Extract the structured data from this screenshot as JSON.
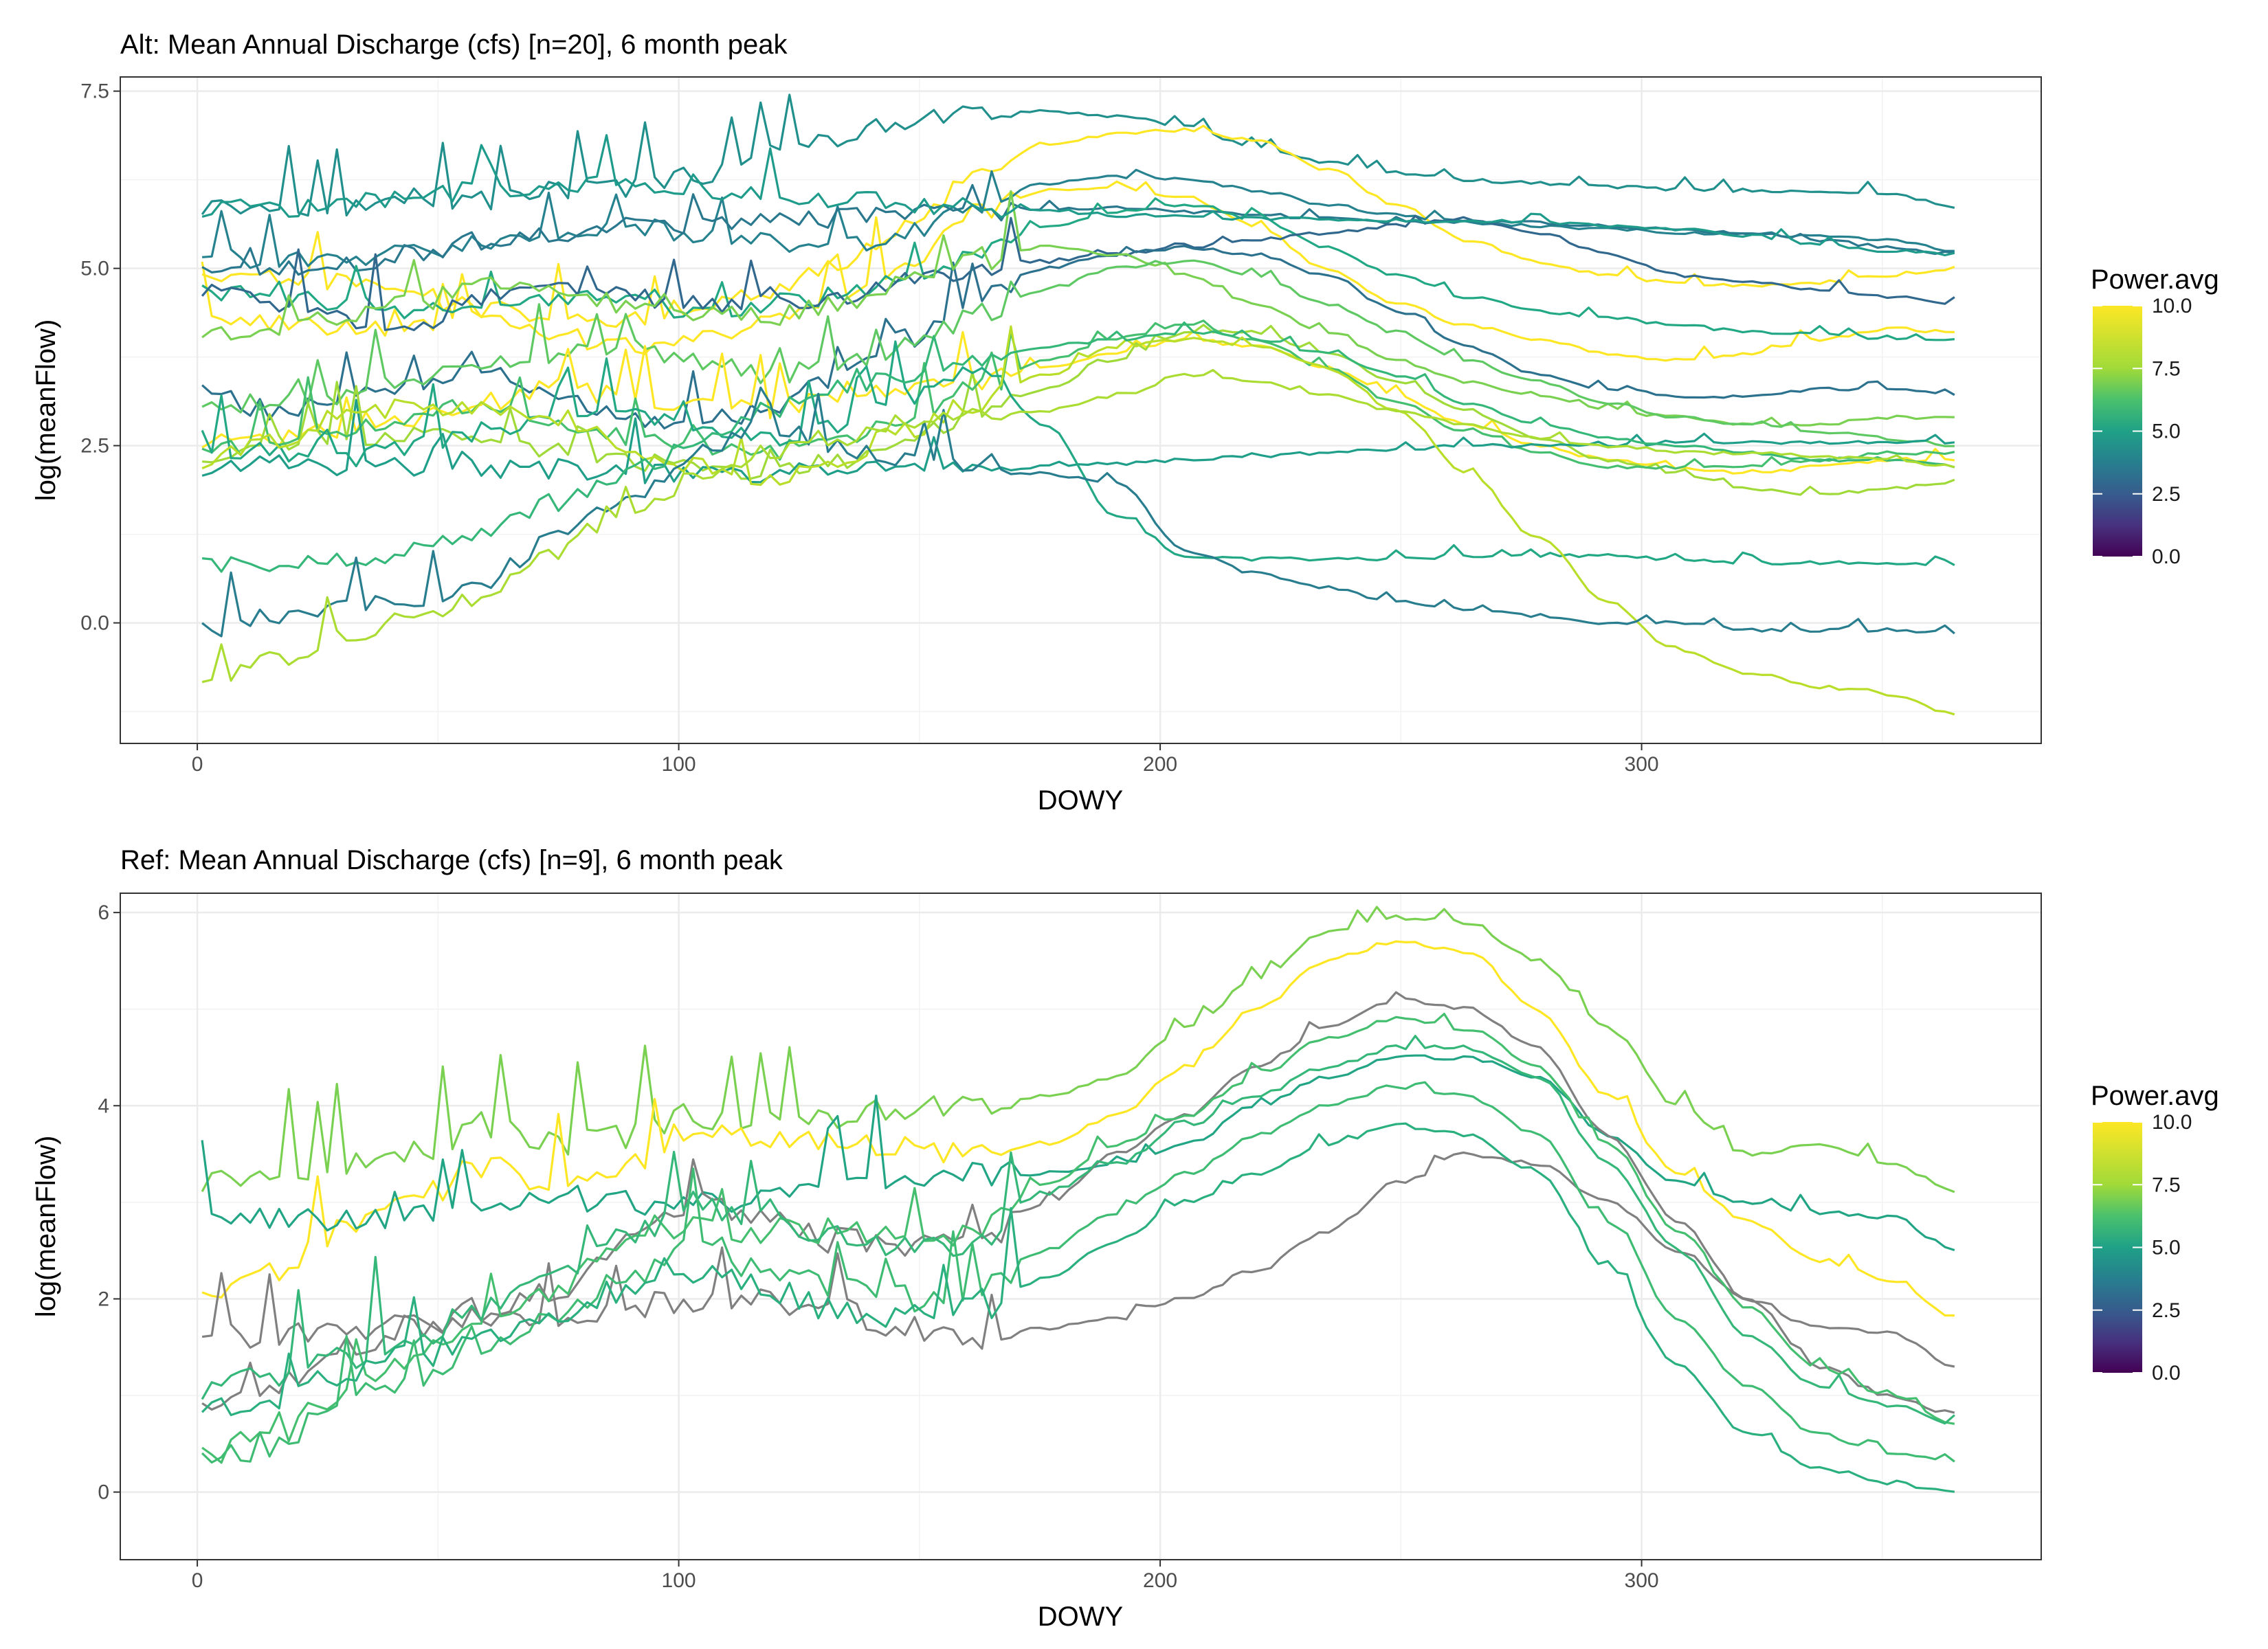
{
  "chart_data": [
    {
      "type": "line",
      "title": "Alt: Mean Annual Discharge (cfs) [n=20], 6 month peak",
      "xlabel": "DOWY",
      "ylabel": "log(meanFlow)",
      "xlim": [
        -16,
        383
      ],
      "ylim": [
        -1.7,
        7.7
      ],
      "xticks": [
        0,
        100,
        200,
        300
      ],
      "xtick_labels": [
        "0",
        "100",
        "200",
        "300"
      ],
      "yticks": [
        0,
        2.5,
        5,
        7.5
      ],
      "ytick_labels": [
        "0.0",
        "2.5",
        "5.0",
        "7.5"
      ],
      "grid": true,
      "legend": {
        "title": "Power.avg",
        "placement": "right",
        "type": "colorbar",
        "ticks": [
          "0.0",
          "2.5",
          "5.0",
          "7.5",
          "10.0"
        ],
        "range": [
          0,
          10
        ]
      },
      "series": [
        {
          "color": "#21908d",
          "power": 5.0,
          "y": [
            5.85,
            5.82,
            5.85,
            6.0,
            5.95,
            6.1,
            6.15,
            6.3,
            6.6,
            6.85,
            7.1,
            7.2,
            7.22,
            7.15,
            7.0,
            6.7,
            6.5,
            6.35,
            6.25,
            6.2,
            6.15,
            6.12,
            6.1,
            6.08,
            6.05,
            5.85
          ]
        },
        {
          "color": "#fde725",
          "power": 10.0,
          "y": [
            4.95,
            4.9,
            4.8,
            4.6,
            4.45,
            4.35,
            4.3,
            4.5,
            4.7,
            5.0,
            5.6,
            6.3,
            6.75,
            6.9,
            6.95,
            6.8,
            6.4,
            5.9,
            5.4,
            5.1,
            4.9,
            4.8,
            4.75,
            4.8,
            4.9,
            5.0
          ]
        },
        {
          "color": "#fde725",
          "power": 9.8,
          "y": [
            4.25,
            4.2,
            4.15,
            4.2,
            4.3,
            4.0,
            3.9,
            4.0,
            4.2,
            4.5,
            5.1,
            5.8,
            6.1,
            6.15,
            6.0,
            5.6,
            5.0,
            4.5,
            4.2,
            4.0,
            3.8,
            3.7,
            3.8,
            4.0,
            4.15,
            4.1
          ]
        },
        {
          "color": "#26828e",
          "power": 4.6,
          "y": [
            5.15,
            5.1,
            5.15,
            5.2,
            5.3,
            5.5,
            5.6,
            5.5,
            5.4,
            5.3,
            5.5,
            5.9,
            6.2,
            6.3,
            6.25,
            6.1,
            5.9,
            5.75,
            5.65,
            5.6,
            5.55,
            5.5,
            5.5,
            5.45,
            5.4,
            5.25
          ]
        },
        {
          "color": "#2a788e",
          "power": 4.2,
          "y": [
            5.05,
            5.0,
            5.05,
            5.2,
            5.4,
            5.5,
            5.55,
            5.6,
            5.65,
            5.7,
            5.75,
            5.8,
            5.85,
            5.85,
            5.8,
            5.75,
            5.7,
            5.65,
            5.65,
            5.65,
            5.6,
            5.55,
            5.5,
            5.4,
            5.3,
            5.2
          ]
        },
        {
          "color": "#22a884",
          "power": 6.3,
          "y": [
            4.7,
            4.6,
            4.5,
            4.4,
            4.5,
            4.6,
            4.5,
            4.4,
            4.5,
            4.6,
            4.8,
            5.2,
            5.6,
            5.8,
            5.9,
            5.7,
            5.3,
            4.9,
            4.6,
            4.4,
            4.3,
            4.2,
            4.1,
            4.1,
            4.0,
            4.0
          ]
        },
        {
          "color": "#31688e",
          "power": 3.6,
          "y": [
            4.65,
            4.5,
            4.3,
            4.2,
            4.6,
            4.7,
            4.6,
            4.5,
            4.5,
            4.6,
            4.8,
            5.0,
            5.1,
            5.2,
            5.3,
            5.4,
            5.5,
            5.6,
            5.7,
            5.5,
            5.2,
            4.9,
            4.8,
            4.7,
            4.6,
            4.5
          ]
        },
        {
          "color": "#2c728e",
          "power": 4.0,
          "y": [
            3.25,
            3.0,
            3.1,
            3.4,
            3.6,
            3.2,
            2.9,
            2.8,
            3.0,
            3.4,
            4.0,
            4.6,
            5.0,
            5.2,
            5.3,
            5.2,
            4.9,
            4.4,
            3.9,
            3.5,
            3.3,
            3.2,
            3.2,
            3.3,
            3.3,
            3.2
          ]
        },
        {
          "color": "#7ad151",
          "power": 8.6,
          "y": [
            4.1,
            4.2,
            4.3,
            4.5,
            4.8,
            4.7,
            4.5,
            4.4,
            4.3,
            4.5,
            4.8,
            5.1,
            5.3,
            5.2,
            4.9,
            4.5,
            4.1,
            3.7,
            3.4,
            3.2,
            3.0,
            2.9,
            2.8,
            2.8,
            2.9,
            2.9
          ]
        },
        {
          "color": "#5ec962",
          "power": 8.1,
          "y": [
            3.0,
            3.1,
            3.2,
            3.4,
            3.6,
            3.8,
            3.9,
            3.7,
            3.5,
            3.6,
            3.9,
            4.3,
            4.7,
            5.0,
            5.1,
            4.9,
            4.5,
            4.1,
            3.7,
            3.4,
            3.1,
            2.9,
            2.8,
            2.7,
            2.6,
            2.5
          ]
        },
        {
          "color": "#fde725",
          "power": 9.9,
          "y": [
            2.5,
            2.6,
            2.7,
            2.9,
            3.1,
            3.3,
            3.2,
            3.1,
            3.0,
            3.2,
            3.3,
            3.4,
            3.6,
            3.8,
            4.0,
            3.9,
            3.6,
            3.2,
            2.8,
            2.5,
            2.3,
            2.2,
            2.1,
            2.2,
            2.3,
            2.3
          ]
        },
        {
          "color": "#a0da39",
          "power": 9.0,
          "y": [
            2.3,
            2.5,
            2.6,
            2.7,
            2.5,
            2.4,
            2.3,
            2.2,
            2.1,
            2.3,
            2.6,
            2.9,
            3.3,
            3.7,
            4.1,
            4.1,
            3.8,
            3.4,
            3.0,
            2.6,
            2.3,
            2.1,
            1.9,
            1.8,
            1.9,
            2.0
          ]
        },
        {
          "color": "#44bf70",
          "power": 7.5,
          "y": [
            2.4,
            2.5,
            2.7,
            2.9,
            3.1,
            2.8,
            2.6,
            2.5,
            2.4,
            2.6,
            2.9,
            3.3,
            3.7,
            4.0,
            4.2,
            4.0,
            3.6,
            3.1,
            2.7,
            2.4,
            2.2,
            2.2,
            2.2,
            2.3,
            2.4,
            2.4
          ]
        },
        {
          "color": "#1f9e89",
          "power": 5.8,
          "y": [
            2.2,
            2.25,
            2.2,
            2.2,
            2.15,
            2.15,
            2.1,
            2.1,
            2.1,
            2.12,
            2.15,
            2.15,
            2.2,
            2.25,
            2.3,
            2.35,
            2.4,
            2.45,
            2.5,
            2.5,
            2.5,
            2.55,
            2.55,
            2.55,
            2.55,
            2.55
          ]
        },
        {
          "color": "#22a884",
          "power": 6.4,
          "y": [
            2.5,
            2.4,
            2.3,
            2.5,
            2.7,
            2.9,
            3.0,
            2.7,
            2.6,
            2.8,
            3.2,
            3.6,
            2.8,
            1.5,
            0.95,
            0.9,
            0.9,
            0.9,
            0.95,
            0.95,
            0.95,
            0.9,
            0.85,
            0.85,
            0.85,
            0.8
          ]
        },
        {
          "color": "#b8de29",
          "power": 9.4,
          "y": [
            2.3,
            2.6,
            2.9,
            3.1,
            3.0,
            2.9,
            2.5,
            2.2,
            2.0,
            2.3,
            2.7,
            3.1,
            3.5,
            3.9,
            4.0,
            3.9,
            3.6,
            3.0,
            2.1,
            1.2,
            0.3,
            -0.4,
            -0.7,
            -0.9,
            -1.0,
            -1.3
          ]
        },
        {
          "color": "#35b779",
          "power": 7.2,
          "y": [
            0.85,
            0.8,
            0.9,
            1.0,
            1.3,
            1.7,
            2.1,
            2.5,
            3.0,
            3.3,
            3.5,
            3.7,
            3.9,
            4.0,
            4.1,
            4.0,
            3.8,
            3.5,
            3.1,
            2.8,
            2.6,
            2.5,
            2.4,
            2.3,
            2.3,
            2.2
          ]
        },
        {
          "color": "#287d8e",
          "power": 4.4,
          "y": [
            -0.1,
            0.1,
            0.2,
            0.3,
            0.6,
            1.2,
            1.7,
            2.4,
            2.8,
            2.5,
            2.3,
            2.2,
            2.1,
            2.0,
            1.0,
            0.7,
            0.5,
            0.3,
            0.2,
            0.1,
            0.0,
            0.0,
            -0.1,
            -0.1,
            -0.1,
            -0.15
          ]
        },
        {
          "color": "#aadc32",
          "power": 9.2,
          "y": [
            -0.95,
            -0.5,
            -0.2,
            0.1,
            0.4,
            1.0,
            1.6,
            2.0,
            2.4,
            2.6,
            2.8,
            2.9,
            3.0,
            3.2,
            3.5,
            3.4,
            3.2,
            3.0,
            2.8,
            2.6,
            2.5,
            2.4,
            2.4,
            2.35,
            2.3,
            2.2
          ]
        },
        {
          "color": "#1e9b8a",
          "power": 5.7,
          "y": [
            5.85,
            5.85,
            5.9,
            6.0,
            6.1,
            6.2,
            6.15,
            6.1,
            6.05,
            6.0,
            5.9,
            5.85,
            5.8,
            5.75,
            5.75,
            5.7,
            5.7,
            5.68,
            5.65,
            5.65,
            5.6,
            5.55,
            5.45,
            5.35,
            5.25,
            5.2
          ]
        }
      ]
    },
    {
      "type": "line",
      "title": "Ref: Mean Annual Discharge (cfs) [n=9], 6 month peak",
      "xlabel": "DOWY",
      "ylabel": "log(meanFlow)",
      "xlim": [
        -16,
        383
      ],
      "ylim": [
        -0.7,
        6.2
      ],
      "xticks": [
        0,
        100,
        200,
        300
      ],
      "xtick_labels": [
        "0",
        "100",
        "200",
        "300"
      ],
      "yticks": [
        0,
        2,
        4,
        6
      ],
      "ytick_labels": [
        "0",
        "2",
        "4",
        "6"
      ],
      "grid": true,
      "legend": {
        "title": "Power.avg",
        "placement": "right",
        "type": "colorbar",
        "ticks": [
          "0.0",
          "2.5",
          "5.0",
          "7.5",
          "10.0"
        ],
        "range": [
          0,
          10
        ]
      },
      "series": [
        {
          "color": "#7ad151",
          "power": 8.6,
          "y": [
            3.2,
            3.25,
            3.4,
            3.5,
            3.8,
            3.6,
            3.7,
            3.9,
            3.8,
            3.9,
            4.0,
            4.0,
            4.1,
            4.3,
            4.8,
            5.3,
            5.8,
            5.95,
            5.9,
            5.5,
            4.8,
            4.0,
            3.5,
            3.6,
            3.4,
            3.1
          ]
        },
        {
          "color": "#fde725",
          "power": 10.0,
          "y": [
            2.1,
            2.3,
            2.7,
            3.0,
            3.4,
            3.2,
            3.4,
            3.8,
            3.7,
            3.6,
            3.6,
            3.5,
            3.6,
            3.9,
            4.4,
            5.0,
            5.5,
            5.7,
            5.6,
            5.0,
            4.1,
            3.3,
            2.8,
            2.4,
            2.2,
            1.8
          ]
        },
        {
          "color": "#21a585",
          "power": 6.2,
          "y": [
            2.8,
            2.8,
            2.8,
            2.9,
            2.9,
            3.0,
            3.0,
            3.0,
            3.0,
            3.2,
            3.3,
            3.3,
            3.3,
            3.4,
            3.6,
            4.0,
            4.3,
            4.5,
            4.5,
            4.3,
            3.7,
            3.2,
            3.0,
            2.9,
            2.85,
            2.5
          ]
        },
        {
          "color": "#808080",
          "power": null,
          "y": [
            1.6,
            1.6,
            1.7,
            1.7,
            1.75,
            1.8,
            1.9,
            2.0,
            2.0,
            1.9,
            1.7,
            1.6,
            1.7,
            1.8,
            2.0,
            2.3,
            2.7,
            3.2,
            3.5,
            3.4,
            3.0,
            2.5,
            2.0,
            1.7,
            1.65,
            1.3
          ]
        },
        {
          "color": "#808080",
          "power": null,
          "y": [
            0.95,
            1.1,
            1.5,
            1.7,
            1.9,
            2.1,
            2.5,
            3.0,
            2.8,
            2.6,
            2.5,
            2.6,
            3.0,
            3.5,
            3.9,
            4.4,
            4.8,
            5.1,
            5.0,
            4.6,
            3.7,
            2.8,
            2.0,
            1.3,
            1.0,
            0.8
          ]
        },
        {
          "color": "#44bf70",
          "power": 7.5,
          "y": [
            0.4,
            0.6,
            1.0,
            1.4,
            1.8,
            2.1,
            2.5,
            2.8,
            2.7,
            2.7,
            2.6,
            2.7,
            3.2,
            3.6,
            3.9,
            4.3,
            4.7,
            4.9,
            4.8,
            4.4,
            3.6,
            2.7,
            1.9,
            1.3,
            1.0,
            0.7
          ]
        },
        {
          "color": "#35b779",
          "power": 7.1,
          "y": [
            1.0,
            1.2,
            1.4,
            1.6,
            1.9,
            2.2,
            2.6,
            3.0,
            2.8,
            2.7,
            2.5,
            2.6,
            3.1,
            3.4,
            3.8,
            4.1,
            4.4,
            4.6,
            4.6,
            4.3,
            3.4,
            2.5,
            1.6,
            1.1,
            0.9,
            0.7
          ]
        },
        {
          "color": "#3fbc73",
          "power": 7.4,
          "y": [
            0.3,
            0.5,
            0.9,
            1.2,
            1.5,
            1.8,
            2.2,
            2.6,
            2.3,
            2.1,
            2.0,
            2.1,
            2.5,
            2.9,
            3.3,
            3.7,
            4.0,
            4.2,
            4.1,
            3.7,
            2.8,
            1.8,
            1.1,
            0.6,
            0.4,
            0.3
          ]
        },
        {
          "color": "#2ab07f",
          "power": 6.8,
          "y": [
            0.9,
            1.0,
            1.2,
            1.4,
            1.6,
            1.8,
            2.1,
            2.3,
            2.1,
            1.9,
            1.8,
            1.9,
            2.2,
            2.6,
            3.0,
            3.3,
            3.6,
            3.8,
            3.7,
            3.3,
            2.3,
            1.3,
            0.6,
            0.25,
            0.1,
            0.0
          ]
        }
      ]
    }
  ]
}
